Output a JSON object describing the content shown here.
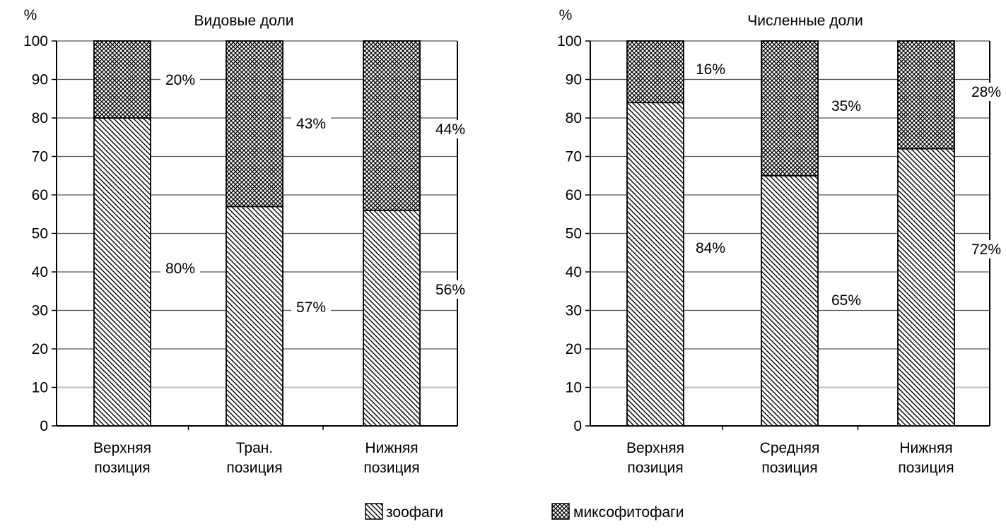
{
  "chart_data": [
    {
      "type": "bar",
      "stacked": true,
      "title": "Видовые доли",
      "ylabel": "%",
      "ylim": [
        0,
        100
      ],
      "yticks": [
        0,
        10,
        20,
        30,
        40,
        50,
        60,
        70,
        80,
        90,
        100
      ],
      "grid": true,
      "categories": [
        [
          "Верхняя",
          "позиция"
        ],
        [
          "Тран.",
          "позиция"
        ],
        [
          "Нижняя",
          "позиция"
        ]
      ],
      "series": [
        {
          "name": "зоофаги",
          "values": [
            80,
            57,
            56
          ],
          "labels": [
            "80%",
            "57%",
            "56%"
          ]
        },
        {
          "name": "миксофитофаги",
          "values": [
            20,
            43,
            44
          ],
          "labels": [
            "20%",
            "43%",
            "44%"
          ]
        }
      ]
    },
    {
      "type": "bar",
      "stacked": true,
      "title": "Численные доли",
      "ylabel": "%",
      "ylim": [
        0,
        100
      ],
      "yticks": [
        0,
        10,
        20,
        30,
        40,
        50,
        60,
        70,
        80,
        90,
        100
      ],
      "grid": true,
      "categories": [
        [
          "Верхняя",
          "позиция"
        ],
        [
          "Средняя",
          "позиция"
        ],
        [
          "Нижняя",
          "позиция"
        ]
      ],
      "series": [
        {
          "name": "зоофаги",
          "values": [
            84,
            65,
            72
          ],
          "labels": [
            "84%",
            "65%",
            "72%"
          ]
        },
        {
          "name": "миксофитофаги",
          "values": [
            16,
            35,
            28
          ],
          "labels": [
            "16%",
            "35%",
            "28%"
          ]
        }
      ]
    }
  ],
  "legend": {
    "position": "bottom",
    "items": [
      {
        "label": "зоофаги",
        "pattern": "diagonal-hatch"
      },
      {
        "label": "миксофитофаги",
        "pattern": "cross-hatch"
      }
    ]
  }
}
